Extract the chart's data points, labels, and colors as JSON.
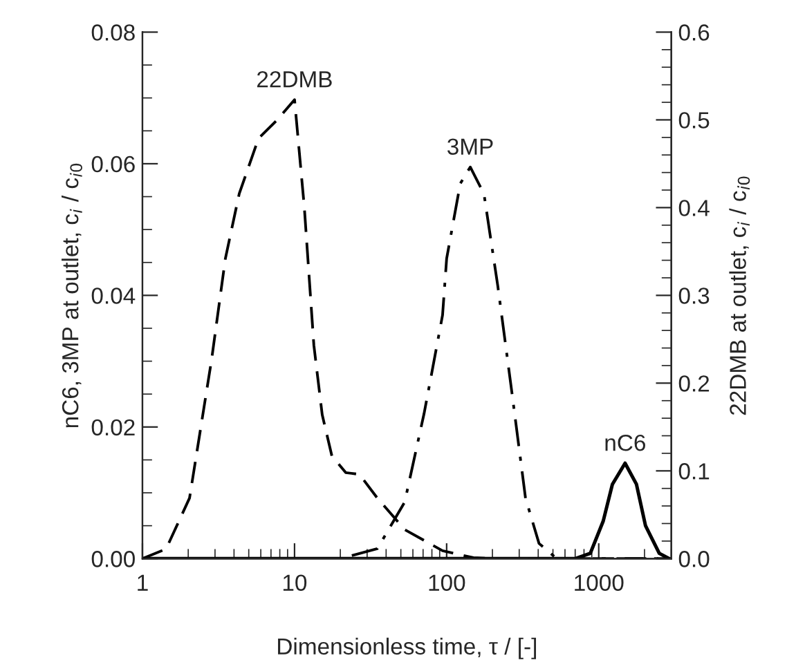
{
  "chart_data": {
    "type": "line",
    "xlabel": "Dimensionless time, τ / [-]",
    "ylabel": "nC6, 3MP at outlet, c$_{i}$ / c$_{i0}$",
    "y2label": "22DMB at outlet, c$_{i}$ / c$_{i0}$",
    "log": "x",
    "grid": false,
    "legend": false,
    "marker": "none",
    "xlim": [
      1,
      3000
    ],
    "xticks": [
      1,
      10,
      100,
      1000
    ],
    "ylim": [
      0,
      0.08
    ],
    "yticks": [
      {
        "value": 0,
        "label": "0.00"
      },
      {
        "value": 0.02,
        "label": "0.02"
      },
      {
        "value": 0.04,
        "label": "0.04"
      },
      {
        "value": 0.06,
        "label": "0.06"
      },
      {
        "value": 0.08,
        "label": "0.08"
      }
    ],
    "y2lim": [
      0,
      0.6
    ],
    "y2ticks": [
      {
        "value": 0,
        "label": "0.0"
      },
      0.1,
      0.2,
      0.3,
      0.4,
      0.5,
      0.6
    ],
    "series": [
      {
        "name": "22DMB",
        "color": "#000000",
        "axis": "y2",
        "line_style": "dashed",
        "x": [
          1,
          1.43,
          2.04,
          2.85,
          3.51,
          4.33,
          5.8,
          7.6,
          10,
          11.6,
          13.4,
          15.2,
          17.6,
          21.7,
          26.7,
          35,
          53,
          94,
          150,
          200,
          3000
        ],
        "values": [
          0,
          0.011,
          0.069,
          0.227,
          0.342,
          0.416,
          0.479,
          0.499,
          0.523,
          0.4,
          0.243,
          0.164,
          0.117,
          0.098,
          0.096,
          0.069,
          0.033,
          0.009,
          0.001,
          0,
          0
        ]
      },
      {
        "name": "3MP",
        "color": "#000000",
        "line_style": "dashdot",
        "x": [
          1,
          20,
          35,
          53,
          71,
          81,
          94,
          100,
          123,
          143,
          176,
          217,
          268,
          330,
          405,
          530,
          3000
        ],
        "values": [
          0,
          0,
          0.0015,
          0.0086,
          0.022,
          0.029,
          0.037,
          0.0456,
          0.057,
          0.0595,
          0.0554,
          0.0414,
          0.0254,
          0.0092,
          0.0023,
          0,
          0
        ]
      },
      {
        "name": "nC6",
        "color": "#000000",
        "line_style": "solid",
        "x": [
          1,
          700,
          880,
          1070,
          1230,
          1490,
          1770,
          2030,
          2500,
          2900
        ],
        "values": [
          0,
          0,
          0.0008,
          0.0057,
          0.0113,
          0.0145,
          0.0113,
          0.005,
          0.0008,
          0
        ]
      }
    ]
  }
}
